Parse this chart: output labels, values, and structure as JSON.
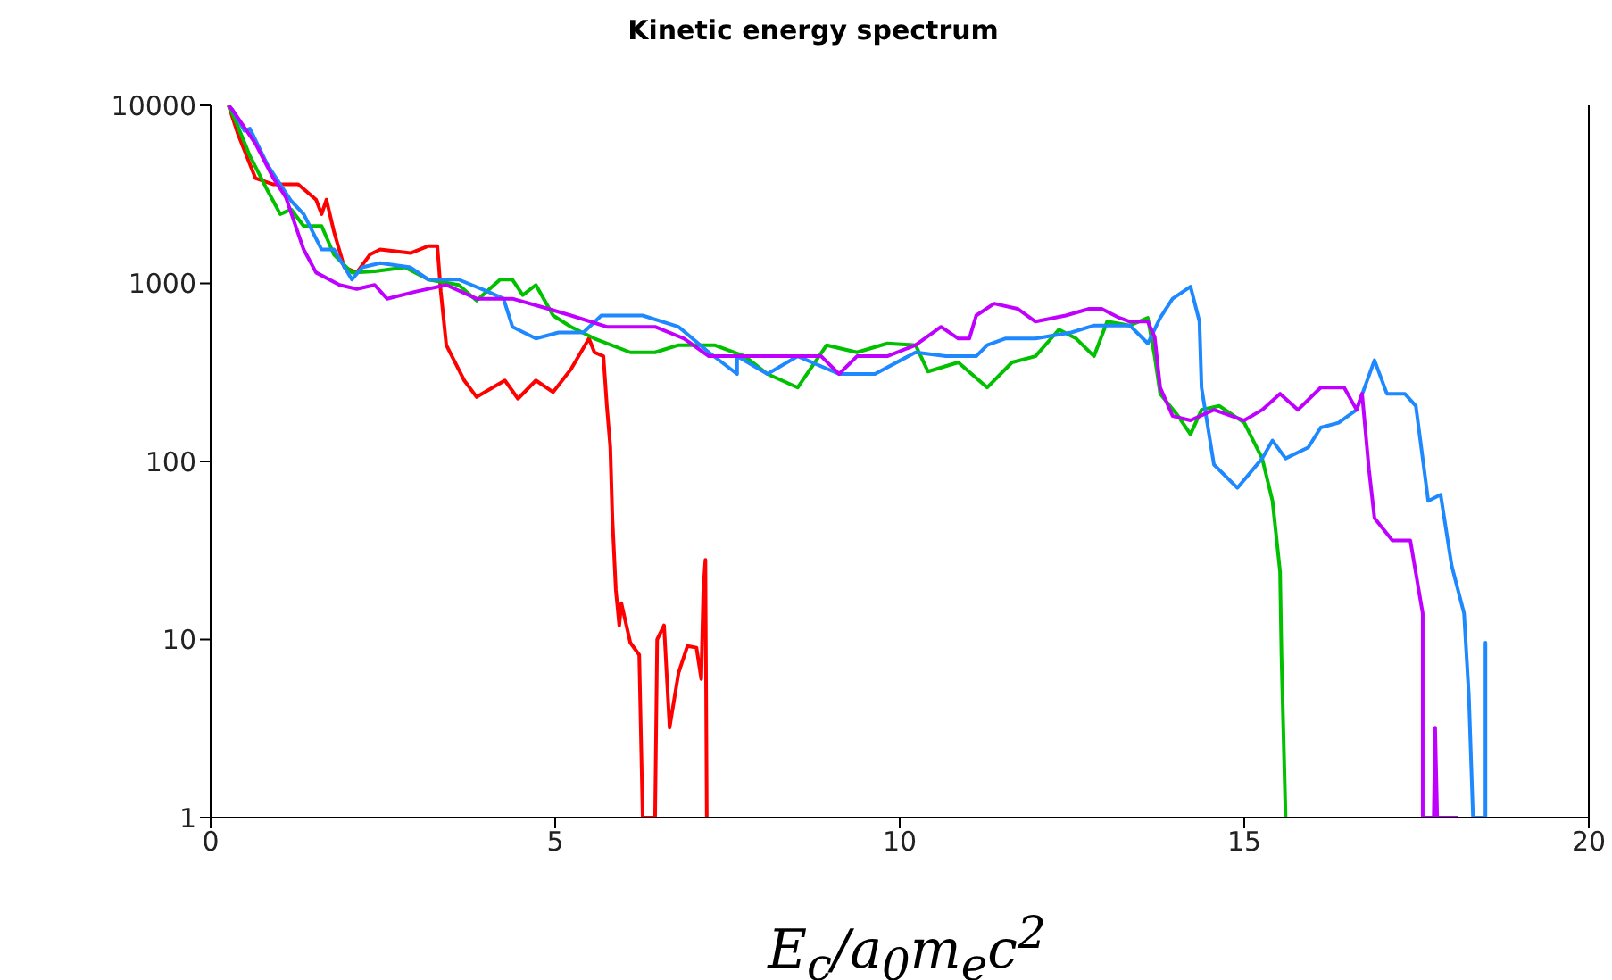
{
  "chart_data": {
    "type": "line",
    "title": "Kinetic energy spectrum",
    "xlabel": "E$_{c}$/a$_{0}$m$_{e}$c$^{2}$",
    "log": "y",
    "xlim": [
      0,
      20
    ],
    "xticks": [
      0,
      5,
      10,
      15,
      20
    ],
    "ylim": [
      1,
      10000
    ],
    "yticks": [
      1,
      10,
      100,
      1000,
      10000
    ],
    "marker": "none",
    "series": [
      {
        "color": "#ff0000",
        "x": [
          0.26,
          0.39,
          0.65,
          0.91,
          1.27,
          1.53,
          1.61,
          1.68,
          1.79,
          1.94,
          2.12,
          2.31,
          2.46,
          2.9,
          3.16,
          3.29,
          3.34,
          3.42,
          3.68,
          3.86,
          4.27,
          4.46,
          4.72,
          4.97,
          5.23,
          5.49,
          5.57,
          5.7,
          5.75,
          5.8,
          5.83,
          5.88,
          5.93,
          5.96,
          6.09,
          6.22,
          6.27,
          6.45,
          6.48,
          6.58,
          6.66,
          6.79,
          6.92,
          7.05,
          7.12,
          7.15,
          7.18,
          7.2
        ],
        "values": [
          10000,
          7000,
          3900,
          3600,
          3600,
          2950,
          2450,
          2950,
          1950,
          1230,
          1150,
          1450,
          1550,
          1480,
          1620,
          1620,
          900,
          450,
          285,
          230,
          285,
          225,
          285,
          245,
          330,
          490,
          410,
          390,
          205,
          120,
          48,
          19,
          12,
          16,
          9.6,
          8.2,
          1,
          1,
          10,
          12,
          3.2,
          6.5,
          9.2,
          9,
          6,
          19,
          28,
          1
        ]
      },
      {
        "color": "#00c000",
        "x": [
          0.26,
          0.39,
          0.57,
          0.83,
          1.01,
          1.17,
          1.35,
          1.61,
          1.79,
          2.05,
          2.38,
          2.82,
          3.16,
          3.6,
          3.86,
          4.2,
          4.38,
          4.53,
          4.72,
          4.97,
          5.23,
          5.57,
          6.09,
          6.45,
          6.79,
          7.31,
          7.75,
          8.08,
          8.52,
          8.94,
          9.38,
          9.82,
          10.23,
          10.41,
          10.85,
          11.27,
          11.63,
          11.97,
          12.31,
          12.56,
          12.82,
          13.01,
          13.34,
          13.6,
          13.7,
          13.78,
          14.04,
          14.22,
          14.38,
          14.64,
          15.0,
          15.26,
          15.41,
          15.52,
          15.54,
          15.6
        ],
        "values": [
          10000,
          7700,
          5200,
          3300,
          2450,
          2600,
          2100,
          2100,
          1450,
          1150,
          1170,
          1230,
          1050,
          980,
          800,
          1050,
          1050,
          860,
          980,
          660,
          570,
          490,
          410,
          410,
          450,
          450,
          390,
          310,
          260,
          450,
          410,
          460,
          450,
          320,
          360,
          260,
          360,
          390,
          550,
          490,
          390,
          610,
          580,
          640,
          390,
          240,
          180,
          142,
          195,
          205,
          165,
          104,
          60,
          24,
          8.2,
          1
        ]
      },
      {
        "color": "#1e88ff",
        "x": [
          0.26,
          0.31,
          0.49,
          0.57,
          0.83,
          1.17,
          1.35,
          1.61,
          1.79,
          2.05,
          2.2,
          2.46,
          2.9,
          3.16,
          3.6,
          4.02,
          4.25,
          4.38,
          4.72,
          5.05,
          5.41,
          5.67,
          6.27,
          6.79,
          7.23,
          7.64,
          7.64,
          8.08,
          8.52,
          9.12,
          9.64,
          10.23,
          10.67,
          11.11,
          11.27,
          11.53,
          11.97,
          12.49,
          12.82,
          13.34,
          13.6,
          13.78,
          13.96,
          14.22,
          14.35,
          14.38,
          14.56,
          14.9,
          15.26,
          15.41,
          15.6,
          15.93,
          16.11,
          16.37,
          16.63,
          16.89,
          17.07,
          17.33,
          17.49,
          17.67,
          17.85,
          18.01,
          18.19,
          18.26,
          18.32,
          18.5,
          18.5,
          18.5
        ],
        "values": [
          10000,
          9500,
          7200,
          7400,
          4600,
          2900,
          2450,
          1550,
          1550,
          1050,
          1230,
          1300,
          1230,
          1050,
          1050,
          900,
          820,
          570,
          490,
          530,
          530,
          660,
          660,
          570,
          410,
          310,
          390,
          310,
          390,
          310,
          310,
          410,
          390,
          390,
          450,
          490,
          490,
          530,
          580,
          580,
          460,
          640,
          820,
          960,
          610,
          260,
          96,
          71,
          104,
          131,
          104,
          120,
          155,
          165,
          195,
          370,
          240,
          240,
          205,
          60,
          65,
          26,
          14,
          4.8,
          1,
          1,
          9.6,
          1
        ]
      },
      {
        "color": "#c000ff",
        "x": [
          0.26,
          0.31,
          0.65,
          0.91,
          1.09,
          1.35,
          1.53,
          1.87,
          2.12,
          2.38,
          2.56,
          2.98,
          3.42,
          3.86,
          4.38,
          4.9,
          5.23,
          5.75,
          6.45,
          6.87,
          7.23,
          7.64,
          8.08,
          8.52,
          8.86,
          9.12,
          9.38,
          9.82,
          10.23,
          10.6,
          10.85,
          11.01,
          11.11,
          11.37,
          11.71,
          11.97,
          12.41,
          12.75,
          12.93,
          13.19,
          13.34,
          13.6,
          13.7,
          13.78,
          13.96,
          14.22,
          14.56,
          15.0,
          15.26,
          15.52,
          15.78,
          16.11,
          16.45,
          16.63,
          16.71,
          16.81,
          16.89,
          17.15,
          17.41,
          17.59,
          17.59,
          17.75,
          17.77,
          17.8,
          18.11
        ],
        "values": [
          10000,
          9500,
          6100,
          3900,
          3050,
          1550,
          1150,
          980,
          930,
          980,
          820,
          900,
          980,
          820,
          820,
          720,
          660,
          570,
          570,
          490,
          390,
          390,
          390,
          390,
          390,
          310,
          390,
          390,
          450,
          570,
          490,
          490,
          660,
          770,
          720,
          610,
          660,
          720,
          720,
          640,
          610,
          610,
          500,
          260,
          180,
          170,
          195,
          170,
          195,
          240,
          195,
          260,
          260,
          195,
          240,
          90,
          48,
          36,
          36,
          14,
          1,
          1,
          3.2,
          1,
          1
        ]
      }
    ]
  }
}
